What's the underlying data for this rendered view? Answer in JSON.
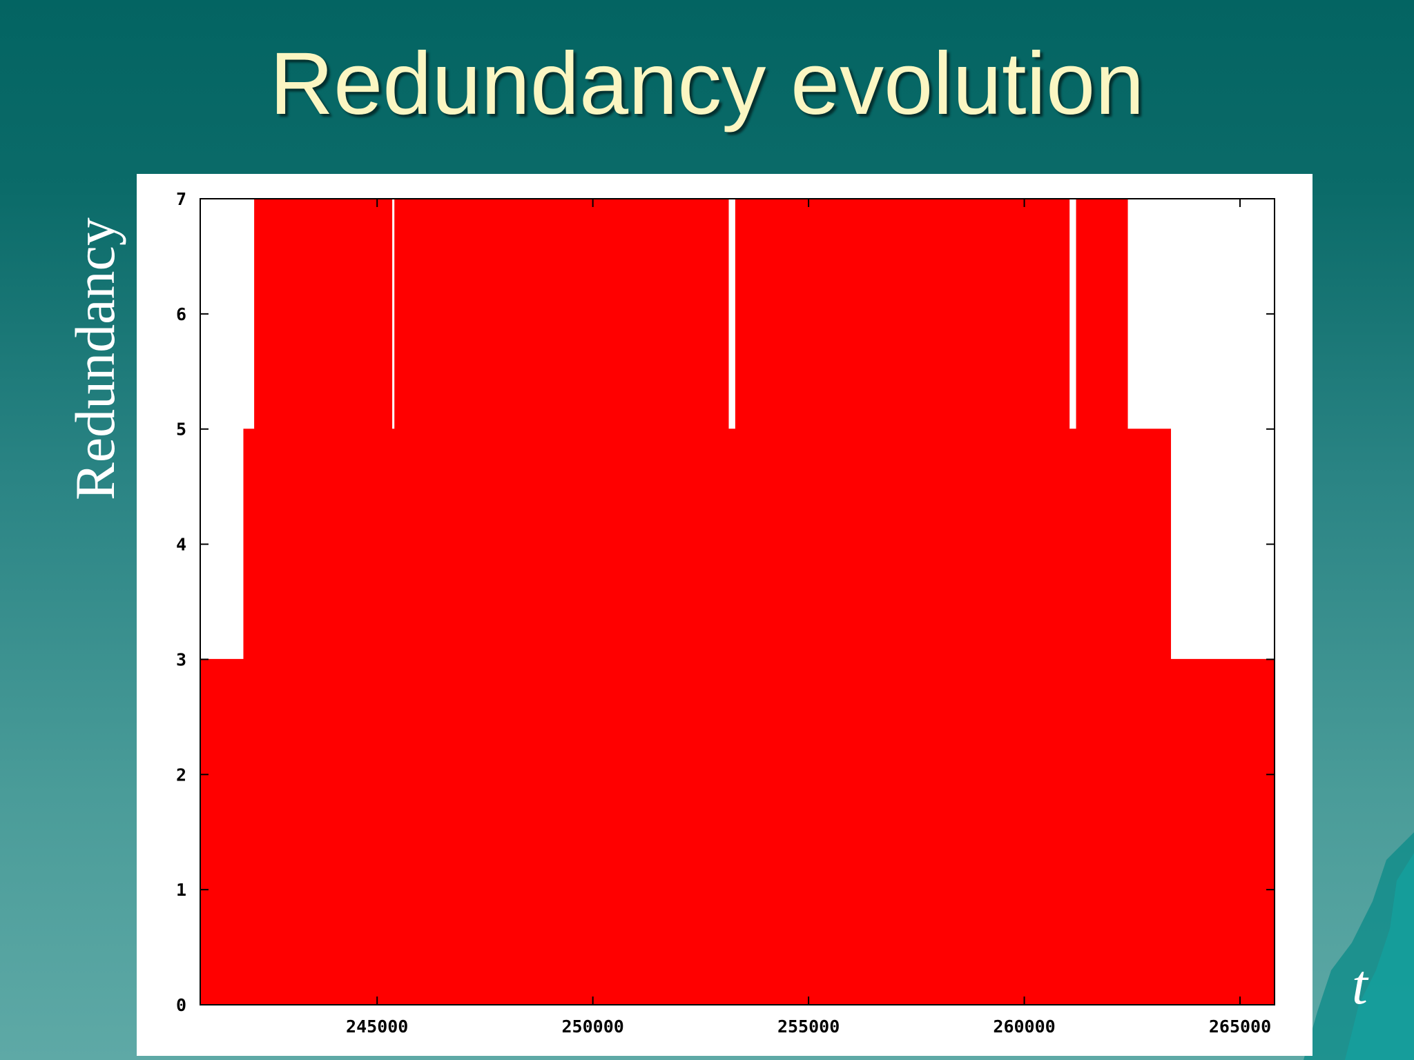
{
  "slide": {
    "title": "Redundancy evolution",
    "ylabel": "Redundancy",
    "xlabel": "t"
  },
  "colors": {
    "background_top": "#036462",
    "background_bottom": "#5ea9a6",
    "title": "#fbf6c2",
    "fill": "#ff0000"
  },
  "chart_data": {
    "type": "area",
    "title": "",
    "xlabel": "t",
    "ylabel": "Redundancy",
    "xlim": [
      240900,
      265800
    ],
    "ylim": [
      0,
      7
    ],
    "xticks": [
      245000,
      250000,
      255000,
      260000,
      265000
    ],
    "xtick_labels": [
      "245000",
      "250000",
      "255000",
      "260000",
      "265000"
    ],
    "yticks": [
      0,
      1,
      2,
      3,
      4,
      5,
      6,
      7
    ],
    "ytick_labels": [
      "0",
      "1",
      "2",
      "3",
      "4",
      "5",
      "6",
      "7"
    ],
    "grid": false,
    "step": true,
    "points": [
      {
        "x": 240900,
        "y": 3
      },
      {
        "x": 241900,
        "y": 5
      },
      {
        "x": 242150,
        "y": 7
      },
      {
        "x": 245350,
        "y": 5
      },
      {
        "x": 245400,
        "y": 7
      },
      {
        "x": 253150,
        "y": 5
      },
      {
        "x": 253300,
        "y": 7
      },
      {
        "x": 261050,
        "y": 5
      },
      {
        "x": 261200,
        "y": 7
      },
      {
        "x": 262400,
        "y": 5
      },
      {
        "x": 263400,
        "y": 3
      },
      {
        "x": 265800,
        "y": 3
      }
    ]
  }
}
